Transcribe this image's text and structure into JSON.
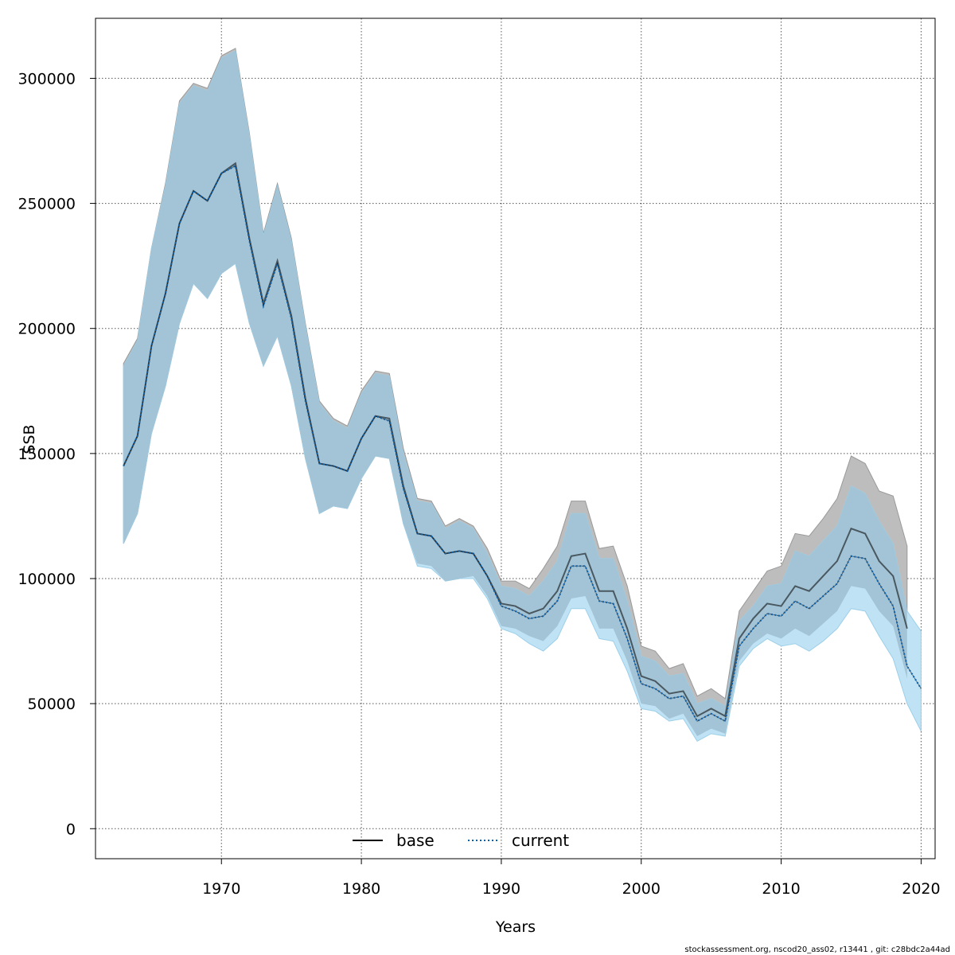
{
  "footer": "stockassessment.org, nscod20_ass02, r13441 , git: c28bdc2a44ad",
  "chart_data": {
    "type": "line",
    "xlabel": "Years",
    "ylabel": "SSB",
    "xlim": [
      1961,
      2021
    ],
    "ylim": [
      -12000,
      324000
    ],
    "xticks": [
      1970,
      1980,
      1990,
      2000,
      2010,
      2020
    ],
    "yticks": [
      0,
      50000,
      100000,
      150000,
      200000,
      250000,
      300000
    ],
    "grid": true,
    "legend_position": "bottom-center",
    "colors": {
      "base_line": "#000000",
      "base_band": "#bdbdbd",
      "current_line": "#0b5ea8",
      "current_band": "#bfe3f5",
      "overlap_band": "#a3c4d6"
    },
    "series": [
      {
        "name": "base",
        "line_style": "solid",
        "x": [
          1963,
          1964,
          1965,
          1966,
          1967,
          1968,
          1969,
          1970,
          1971,
          1972,
          1973,
          1974,
          1975,
          1976,
          1977,
          1978,
          1979,
          1980,
          1981,
          1982,
          1983,
          1984,
          1985,
          1986,
          1987,
          1988,
          1989,
          1990,
          1991,
          1992,
          1993,
          1994,
          1995,
          1996,
          1997,
          1998,
          1999,
          2000,
          2001,
          2002,
          2003,
          2004,
          2005,
          2006,
          2007,
          2008,
          2009,
          2010,
          2011,
          2012,
          2013,
          2014,
          2015,
          2016,
          2017,
          2018,
          2019
        ],
        "values": [
          145000,
          157000,
          193000,
          214000,
          242000,
          255000,
          251000,
          262000,
          266000,
          236000,
          210000,
          227000,
          205000,
          172000,
          146000,
          145000,
          143000,
          156000,
          165000,
          164000,
          137000,
          118000,
          117000,
          110000,
          111000,
          110000,
          101000,
          90000,
          89000,
          86000,
          88000,
          95000,
          109000,
          110000,
          95000,
          95000,
          80000,
          61000,
          59000,
          54000,
          55000,
          45000,
          48000,
          45000,
          76000,
          84000,
          90000,
          89000,
          97000,
          95000,
          101000,
          107000,
          120000,
          118000,
          107000,
          101000,
          80000
        ],
        "lower": [
          114000,
          126000,
          158000,
          177000,
          202000,
          218000,
          212000,
          222000,
          226000,
          202000,
          185000,
          197000,
          177000,
          148000,
          126000,
          129000,
          128000,
          140000,
          149000,
          148000,
          122000,
          106000,
          105000,
          99000,
          100000,
          101000,
          93000,
          81000,
          80000,
          77000,
          75000,
          81000,
          92000,
          93000,
          80000,
          80000,
          67000,
          50000,
          49000,
          44000,
          46000,
          37000,
          40000,
          38000,
          67000,
          74000,
          78000,
          76000,
          80000,
          77000,
          82000,
          87000,
          97000,
          96000,
          87000,
          81000,
          60000
        ],
        "upper": [
          186000,
          196000,
          232000,
          258000,
          291000,
          298000,
          296000,
          309000,
          312000,
          278000,
          238000,
          258000,
          236000,
          202000,
          171000,
          164000,
          161000,
          175000,
          183000,
          182000,
          152000,
          132000,
          131000,
          121000,
          124000,
          121000,
          112000,
          99000,
          99000,
          96000,
          104000,
          113000,
          131000,
          131000,
          112000,
          113000,
          97000,
          73000,
          71000,
          64000,
          66000,
          53000,
          56000,
          52000,
          87000,
          95000,
          103000,
          105000,
          118000,
          117000,
          124000,
          132000,
          149000,
          146000,
          135000,
          133000,
          113000
        ]
      },
      {
        "name": "current",
        "line_style": "dotted",
        "x": [
          1963,
          1964,
          1965,
          1966,
          1967,
          1968,
          1969,
          1970,
          1971,
          1972,
          1973,
          1974,
          1975,
          1976,
          1977,
          1978,
          1979,
          1980,
          1981,
          1982,
          1983,
          1984,
          1985,
          1986,
          1987,
          1988,
          1989,
          1990,
          1991,
          1992,
          1993,
          1994,
          1995,
          1996,
          1997,
          1998,
          1999,
          2000,
          2001,
          2002,
          2003,
          2004,
          2005,
          2006,
          2007,
          2008,
          2009,
          2010,
          2011,
          2012,
          2013,
          2014,
          2015,
          2016,
          2017,
          2018,
          2019,
          2020
        ],
        "values": [
          145000,
          157000,
          193000,
          214000,
          242000,
          255000,
          251000,
          262000,
          265000,
          235000,
          209000,
          226000,
          204000,
          171000,
          146000,
          145000,
          143000,
          156000,
          165000,
          163000,
          136000,
          118000,
          117000,
          110000,
          111000,
          110000,
          101000,
          89000,
          87000,
          84000,
          85000,
          91000,
          105000,
          105000,
          91000,
          90000,
          76000,
          58000,
          56000,
          52000,
          53000,
          43000,
          46000,
          43000,
          73000,
          80000,
          86000,
          85000,
          91000,
          88000,
          93000,
          98000,
          109000,
          108000,
          98000,
          89000,
          65000,
          56000
        ],
        "lower": [
          114000,
          126000,
          158000,
          177000,
          202000,
          218000,
          212000,
          222000,
          226000,
          202000,
          185000,
          197000,
          177000,
          148000,
          126000,
          129000,
          128000,
          140000,
          149000,
          148000,
          122000,
          105000,
          104000,
          99000,
          100000,
          100000,
          92000,
          80000,
          78000,
          74000,
          71000,
          76000,
          88000,
          88000,
          76000,
          75000,
          63000,
          48000,
          47000,
          43000,
          44000,
          35000,
          38000,
          37000,
          65000,
          72000,
          76000,
          73000,
          74000,
          71000,
          75000,
          80000,
          88000,
          87000,
          77000,
          68000,
          50000,
          39000
        ],
        "upper": [
          185000,
          195000,
          232000,
          257000,
          290000,
          297000,
          295000,
          308000,
          311000,
          277000,
          237000,
          257000,
          235000,
          201000,
          170000,
          163000,
          160000,
          174000,
          182000,
          181000,
          150000,
          131000,
          130000,
          120000,
          123000,
          120000,
          110000,
          97000,
          96000,
          93000,
          99000,
          107000,
          126000,
          126000,
          108000,
          108000,
          91000,
          69000,
          67000,
          61000,
          62000,
          50000,
          52000,
          49000,
          83000,
          89000,
          97000,
          98000,
          111000,
          109000,
          115000,
          121000,
          137000,
          134000,
          123000,
          114000,
          87000,
          79000
        ]
      }
    ]
  }
}
